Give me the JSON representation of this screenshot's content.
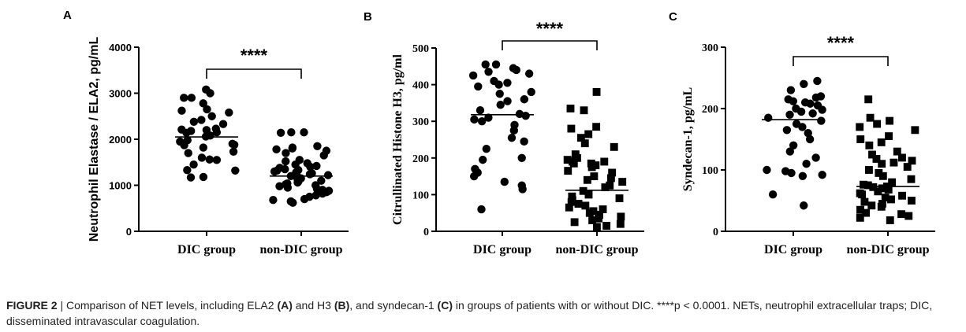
{
  "chart_data": [
    {
      "type": "scatter",
      "panel": "A",
      "ylabel": "Neutrophil Elastase / ELA2, pg/mL",
      "ylim": [
        0,
        4000
      ],
      "yticks": [
        "0",
        "1000",
        "2000",
        "3000",
        "4000"
      ],
      "categories": [
        "DIC group",
        "non-DIC group"
      ],
      "significance": "****",
      "marker": "circle",
      "means": [
        2050,
        1200
      ],
      "series": [
        {
          "name": "DIC group",
          "values": [
            3080,
            3000,
            2900,
            2900,
            2780,
            2650,
            2620,
            2580,
            2500,
            2420,
            2380,
            2330,
            2230,
            2210,
            2200,
            2180,
            2150,
            2140,
            2080,
            2060,
            1980,
            1950,
            1900,
            1880,
            1870,
            1820,
            1730,
            1700,
            1600,
            1560,
            1550,
            1450,
            1330,
            1320,
            1180,
            1170
          ]
        },
        {
          "name": "non-DIC group",
          "values": [
            2150,
            2150,
            2140,
            1850,
            1820,
            1800,
            1780,
            1750,
            1700,
            1650,
            1550,
            1520,
            1480,
            1450,
            1420,
            1400,
            1380,
            1350,
            1330,
            1320,
            1300,
            1280,
            1260,
            1240,
            1220,
            1200,
            1180,
            1150,
            1130,
            1100,
            1080,
            1060,
            1040,
            1020,
            1000,
            980,
            950,
            920,
            900,
            880,
            850,
            820,
            780,
            750,
            700,
            680,
            650,
            620
          ]
        }
      ]
    },
    {
      "type": "scatter",
      "panel": "B",
      "ylabel": "Citrullinated Histone H3,  pg/ml",
      "ylim": [
        0,
        500
      ],
      "yticks": [
        "0",
        "100",
        "200",
        "300",
        "400",
        "500"
      ],
      "categories": [
        "DIC group",
        "non-DIC group"
      ],
      "significance": "****",
      "marker": "circle",
      "marker2": "square",
      "means": [
        318,
        112
      ],
      "series": [
        {
          "name": "DIC group",
          "values": [
            455,
            455,
            445,
            440,
            435,
            430,
            425,
            410,
            405,
            400,
            395,
            380,
            375,
            360,
            355,
            345,
            330,
            320,
            315,
            310,
            305,
            300,
            290,
            275,
            255,
            245,
            225,
            200,
            195,
            170,
            160,
            150,
            135,
            125,
            115,
            60
          ]
        },
        {
          "name": "non-DIC group",
          "values": [
            380,
            335,
            330,
            285,
            280,
            265,
            255,
            240,
            230,
            210,
            200,
            195,
            190,
            190,
            185,
            185,
            180,
            175,
            165,
            160,
            150,
            145,
            140,
            135,
            125,
            120,
            110,
            100,
            95,
            90,
            85,
            80,
            75,
            70,
            65,
            60,
            55,
            50,
            45,
            40,
            35,
            30,
            25,
            20,
            15,
            12
          ]
        }
      ]
    },
    {
      "type": "scatter",
      "panel": "C",
      "ylabel": "Syndecan-1, pg/mL",
      "ylim": [
        0,
        300
      ],
      "yticks": [
        "0",
        "100",
        "200",
        "300"
      ],
      "categories": [
        "DIC group",
        "non-DIC group"
      ],
      "significance": "****",
      "marker": "circle",
      "marker2": "square",
      "means": [
        182,
        73
      ],
      "series": [
        {
          "name": "DIC group",
          "values": [
            245,
            240,
            230,
            220,
            218,
            215,
            212,
            210,
            208,
            205,
            200,
            198,
            195,
            192,
            190,
            185,
            180,
            175,
            170,
            165,
            160,
            150,
            140,
            130,
            120,
            110,
            100,
            98,
            95,
            92,
            90,
            60,
            42
          ]
        },
        {
          "name": "non-DIC group",
          "values": [
            215,
            185,
            180,
            175,
            170,
            165,
            155,
            150,
            145,
            140,
            130,
            125,
            120,
            118,
            115,
            112,
            110,
            105,
            100,
            95,
            90,
            85,
            80,
            76,
            75,
            73,
            72,
            70,
            68,
            65,
            62,
            60,
            58,
            55,
            52,
            50,
            48,
            45,
            42,
            40,
            35,
            30,
            28,
            25,
            22,
            18
          ]
        }
      ]
    }
  ],
  "caption": {
    "figure_label": "FIGURE 2",
    "separator": " | ",
    "text_1": "Comparison of NET levels, including ELA2 ",
    "ref_a": "(A)",
    "text_2": " and H3 ",
    "ref_b": "(B)",
    "text_3": ", and syndecan-1 ",
    "ref_c": "(C)",
    "text_4": " in groups of patients with or without DIC. ****p < 0.0001. NETs, neutrophil extracellular traps; DIC, disseminated intravascular coagulation."
  }
}
